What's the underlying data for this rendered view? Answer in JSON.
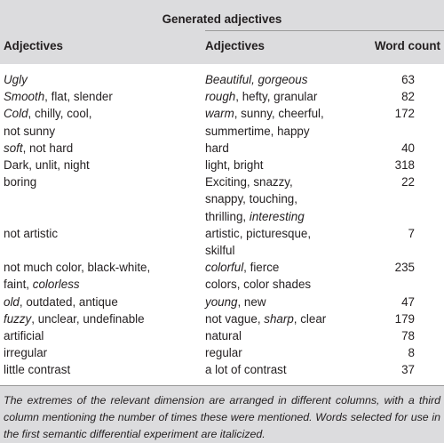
{
  "title": "Generated adjectives",
  "headers": [
    "Adjectives",
    "Adjectives",
    "Word count"
  ],
  "rows": [
    {
      "a": [
        [
          "Ugly",
          true
        ]
      ],
      "b": [
        [
          "Beautiful, gorgeous",
          true
        ]
      ],
      "count": "63",
      "lines": 1
    },
    {
      "a": [
        [
          "Smooth",
          true
        ],
        [
          ", flat, slender",
          false
        ]
      ],
      "b": [
        [
          "rough",
          true
        ],
        [
          ", hefty, granular",
          false
        ]
      ],
      "count": "82",
      "lines": 1
    },
    {
      "a": [
        [
          "Cold",
          true
        ],
        [
          ", chilly, cool,\nnot sunny",
          false
        ]
      ],
      "b": [
        [
          "warm",
          true
        ],
        [
          ", sunny, cheerful,\nsummertime, happy",
          false
        ]
      ],
      "count": "172",
      "lines": 2
    },
    {
      "a": [
        [
          "soft",
          true
        ],
        [
          ", not hard",
          false
        ]
      ],
      "b": [
        [
          "hard",
          false
        ]
      ],
      "count": "40",
      "lines": 1
    },
    {
      "a": [
        [
          "Dark, unlit, night",
          false
        ]
      ],
      "b": [
        [
          "light, bright",
          false
        ]
      ],
      "count": "318",
      "lines": 1
    },
    {
      "a": [
        [
          "boring",
          false
        ]
      ],
      "b": [
        [
          "Exciting, snazzy,\nsnappy, touching,\nthrilling, ",
          false
        ],
        [
          "interesting",
          true
        ]
      ],
      "count": "22",
      "lines": 3
    },
    {
      "a": [
        [
          "not artistic",
          false
        ]
      ],
      "b": [
        [
          "artistic, picturesque,\nskilful",
          false
        ]
      ],
      "count": "7",
      "lines": 2
    },
    {
      "a": [
        [
          "not much color, black-white,\nfaint, ",
          false
        ],
        [
          "colorless",
          true
        ]
      ],
      "b": [
        [
          "colorful",
          true
        ],
        [
          ", fierce\ncolors, color shades",
          false
        ]
      ],
      "count": "235",
      "lines": 2
    },
    {
      "a": [
        [
          "old",
          true
        ],
        [
          ", outdated, antique",
          false
        ]
      ],
      "b": [
        [
          "young",
          true
        ],
        [
          ", new",
          false
        ]
      ],
      "count": "47",
      "lines": 1
    },
    {
      "a": [
        [
          "fuzzy",
          true
        ],
        [
          ", unclear, undefinable",
          false
        ]
      ],
      "b": [
        [
          "not vague, ",
          false
        ],
        [
          "sharp",
          true
        ],
        [
          ", clear",
          false
        ]
      ],
      "count": "179",
      "lines": 1
    },
    {
      "a": [
        [
          "artificial",
          false
        ]
      ],
      "b": [
        [
          "natural",
          false
        ]
      ],
      "count": "78",
      "lines": 1
    },
    {
      "a": [
        [
          "irregular",
          false
        ]
      ],
      "b": [
        [
          "regular",
          false
        ]
      ],
      "count": "8",
      "lines": 1
    },
    {
      "a": [
        [
          "little contrast",
          false
        ]
      ],
      "b": [
        [
          "a lot of contrast",
          false
        ]
      ],
      "count": "37",
      "lines": 1
    }
  ],
  "footnote": "The extremes of the relevant dimension are arranged in different columns, with a third column mentioning the number of times these were mentioned. Words selected for use in the first semantic differential experiment are italicized."
}
